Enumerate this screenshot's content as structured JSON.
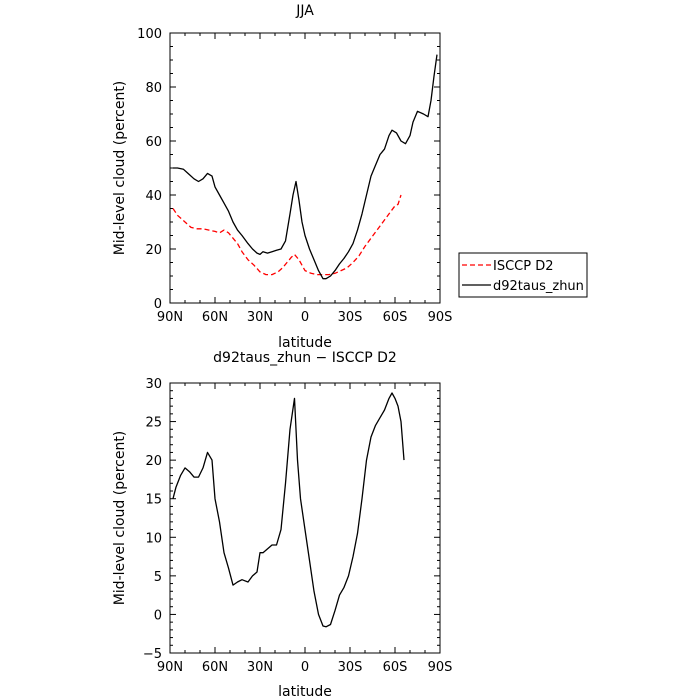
{
  "chart_data": [
    {
      "type": "line",
      "title": "JJA",
      "xlabel": "latitude",
      "ylabel": "Mid-level cloud (percent)",
      "xlim": [
        -90,
        90
      ],
      "ylim": [
        0,
        100
      ],
      "x_tick_labels": [
        "90N",
        "60N",
        "30N",
        "0",
        "30S",
        "60S",
        "90S"
      ],
      "y_tick_labels": [
        "0",
        "20",
        "40",
        "60",
        "80",
        "100"
      ],
      "legend": "right",
      "series": [
        {
          "name": "ISCCP D2",
          "color": "#ff0000",
          "dash": true,
          "x": [
            -88,
            -85,
            -80,
            -76,
            -72,
            -68,
            -64,
            -60,
            -57,
            -54,
            -51,
            -48,
            -45,
            -42,
            -38,
            -34,
            -30,
            -26,
            -22,
            -18,
            -15,
            -12,
            -9,
            -7,
            -4,
            0,
            4,
            8,
            12,
            16,
            20,
            24,
            28,
            32,
            36,
            40,
            44,
            48,
            52,
            56,
            60,
            62,
            64
          ],
          "y": [
            35,
            32.5,
            30,
            28,
            27.5,
            27.5,
            27,
            26.5,
            26,
            27,
            26,
            24,
            22,
            19,
            16,
            14,
            11.5,
            10.5,
            10.5,
            11.5,
            13,
            15,
            17,
            18,
            16,
            12,
            11,
            10.5,
            10.5,
            10.5,
            11,
            12,
            13,
            15,
            17.5,
            21,
            24,
            27,
            30,
            33,
            36,
            36.5,
            40
          ]
        },
        {
          "name": "d92taus_zhun",
          "color": "#000000",
          "dash": false,
          "x": [
            -88,
            -85,
            -81,
            -78,
            -74,
            -71,
            -68,
            -65,
            -62,
            -60,
            -57,
            -54,
            -51,
            -48,
            -45,
            -42,
            -38,
            -35,
            -32,
            -30,
            -28,
            -25,
            -22,
            -19,
            -16,
            -13,
            -10,
            -8,
            -6,
            -4,
            -2,
            0,
            3,
            6,
            9,
            12,
            14,
            17,
            20,
            23,
            26,
            29,
            32,
            35,
            38,
            41,
            44,
            47,
            50,
            53,
            56,
            58,
            61,
            64,
            67,
            70,
            72,
            75,
            79,
            82,
            84,
            86,
            88
          ],
          "y": [
            50,
            50,
            49.5,
            48,
            46,
            45,
            46,
            48,
            47,
            43,
            40,
            37,
            34,
            30,
            27,
            25,
            22,
            20,
            18.5,
            18,
            19,
            18.5,
            19,
            19.5,
            20,
            23,
            33,
            40,
            45,
            38,
            30,
            25,
            20,
            16,
            12,
            9,
            9,
            10,
            12,
            14.5,
            16.5,
            19,
            22,
            27,
            33,
            40,
            47,
            51,
            55,
            57,
            62,
            64,
            63,
            60,
            59,
            62,
            67,
            71,
            70,
            69,
            75,
            84,
            92
          ]
        }
      ]
    },
    {
      "type": "line",
      "title": "d92taus_zhun − ISCCP D2",
      "xlabel": "latitude",
      "ylabel": "Mid-level cloud (percent)",
      "xlim": [
        -90,
        90
      ],
      "ylim": [
        -5,
        30
      ],
      "x_tick_labels": [
        "90N",
        "60N",
        "30N",
        "0",
        "30S",
        "60S",
        "90S"
      ],
      "y_tick_labels": [
        "−5",
        "0",
        "5",
        "10",
        "15",
        "20",
        "25",
        "30"
      ],
      "series": [
        {
          "color": "#000000",
          "x": [
            -88,
            -86,
            -83,
            -80,
            -77,
            -74,
            -71,
            -68,
            -65,
            -62,
            -60,
            -57,
            -54,
            -51,
            -48,
            -45,
            -42,
            -38,
            -35,
            -32,
            -30,
            -28,
            -25,
            -22,
            -19,
            -16,
            -13,
            -10,
            -7,
            -5,
            -3,
            0,
            3,
            6,
            9,
            12,
            14,
            17,
            20,
            23,
            26,
            29,
            32,
            35,
            38,
            41,
            44,
            47,
            50,
            53,
            56,
            58,
            60,
            62,
            64,
            66
          ],
          "y": [
            15,
            16.5,
            18,
            19,
            18.5,
            17.8,
            17.8,
            19,
            21,
            20,
            15,
            12,
            8,
            6,
            3.8,
            4.2,
            4.5,
            4.2,
            5,
            5.5,
            8,
            8,
            8.5,
            9,
            9,
            11,
            17,
            24,
            28,
            20,
            15,
            11,
            7,
            3,
            0,
            -1.5,
            -1.6,
            -1.3,
            0.5,
            2.5,
            3.5,
            5,
            7.5,
            10.5,
            15,
            20,
            23,
            24.5,
            25.5,
            26.5,
            28,
            28.7,
            28,
            27,
            25,
            20
          ]
        }
      ]
    }
  ]
}
